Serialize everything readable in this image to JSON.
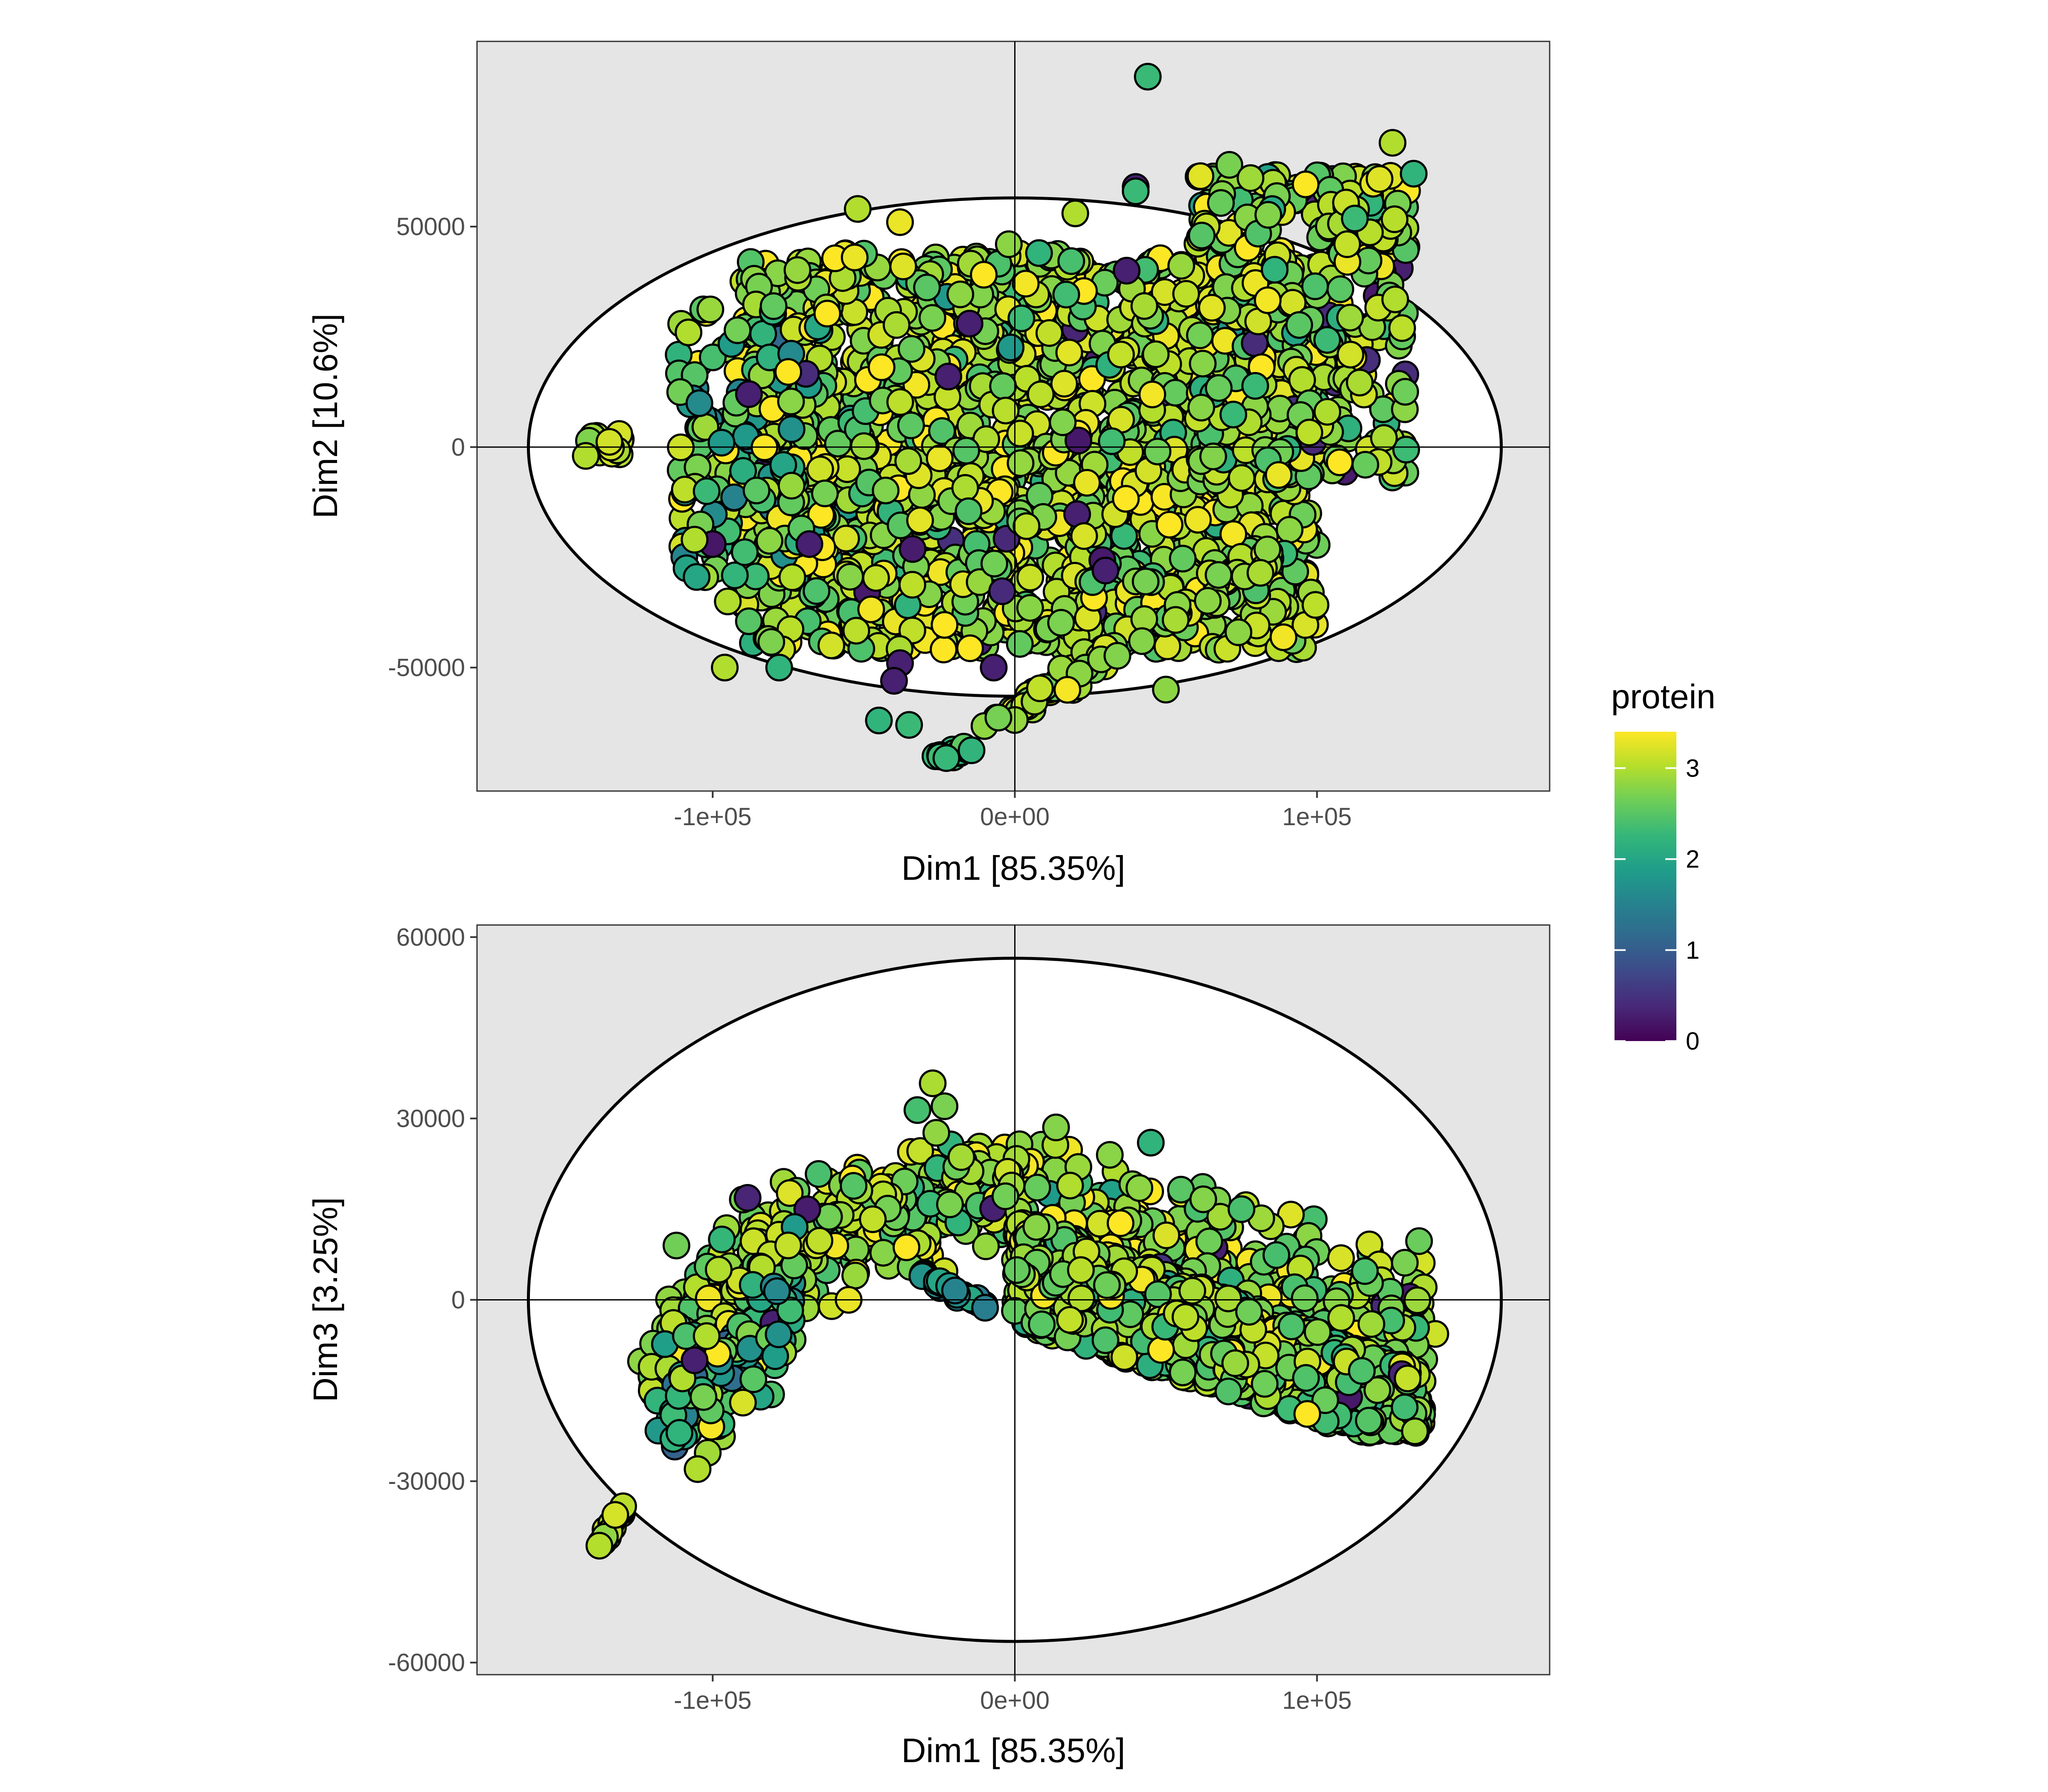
{
  "chart_data": [
    {
      "type": "scatter",
      "id": "top",
      "xlabel": "Dim1 [85.35%]",
      "ylabel": "Dim2 [10.6%]",
      "xlim": [
        -178000,
        177000
      ],
      "ylim": [
        -78000,
        92000
      ],
      "xticks": [
        {
          "value": -100000,
          "label": "-1e+05"
        },
        {
          "value": 0,
          "label": "0e+00"
        },
        {
          "value": 100000,
          "label": "1e+05"
        }
      ],
      "yticks": [
        {
          "value": 50000,
          "label": "50000"
        },
        {
          "value": 0,
          "label": "0"
        },
        {
          "value": -50000,
          "label": "-50000"
        }
      ],
      "ellipse": {
        "cx": 0,
        "cy": 0,
        "rx": 161000,
        "ry": 56500
      },
      "reference_lines": {
        "x": 0,
        "y": 0
      },
      "groups": [
        {
          "desc": "main cloud",
          "n": 1700,
          "type": "box",
          "x": [
            -90000,
            100000
          ],
          "y": [
            -46000,
            44000
          ],
          "protein_mean": 2.9,
          "protein_sd": 0.35
        },
        {
          "desc": "upper right wing",
          "n": 380,
          "type": "box",
          "x": [
            60000,
            130000
          ],
          "y": [
            -8000,
            62000
          ],
          "protein_mean": 2.8,
          "protein_sd": 0.35
        },
        {
          "desc": "lower arc",
          "n": 90,
          "type": "line",
          "from": [
            -10000,
            -64000
          ],
          "to": [
            85000,
            -24000
          ],
          "spread": 2500,
          "protein_mean": 2.9,
          "protein_sd": 0.2
        },
        {
          "desc": "bottom strand",
          "n": 14,
          "type": "line",
          "from": [
            -28000,
            -71000
          ],
          "to": [
            -12000,
            -68000
          ],
          "spread": 1000,
          "protein_mean": 2.3,
          "protein_sd": 0.1
        },
        {
          "desc": "left cluster",
          "n": 14,
          "type": "box",
          "x": [
            -142000,
            -130000
          ],
          "y": [
            -2000,
            3000
          ],
          "protein_mean": 3.0,
          "protein_sd": 0.15
        },
        {
          "desc": "left strands",
          "n": 160,
          "type": "box",
          "x": [
            -112000,
            -62000
          ],
          "y": [
            -30000,
            32000
          ],
          "protein_mean": 2.5,
          "protein_sd": 0.6
        }
      ],
      "highlights": [
        {
          "x": 44000,
          "y": 84000,
          "protein": 2.3
        },
        {
          "x": 125000,
          "y": 69000,
          "protein": 3.0
        },
        {
          "x": 132000,
          "y": 62000,
          "protein": 2.2
        },
        {
          "x": 71000,
          "y": 64000,
          "protein": 2.7
        },
        {
          "x": 78000,
          "y": 61000,
          "protein": 2.9
        },
        {
          "x": -52000,
          "y": 54000,
          "protein": 3.0
        },
        {
          "x": -38000,
          "y": 51000,
          "protein": 3.3
        },
        {
          "x": -53000,
          "y": 43000,
          "protein": 3.3
        },
        {
          "x": 40000,
          "y": 59000,
          "protein": 0.3
        },
        {
          "x": 40000,
          "y": 58000,
          "protein": 2.3
        },
        {
          "x": 20000,
          "y": 53000,
          "protein": 3.0
        },
        {
          "x": -96000,
          "y": -50000,
          "protein": 3.0
        },
        {
          "x": -78000,
          "y": -50000,
          "protein": 2.2
        },
        {
          "x": -35000,
          "y": -63000,
          "protein": 2.3
        },
        {
          "x": -45000,
          "y": -62000,
          "protein": 2.2
        },
        {
          "x": -38000,
          "y": -49000,
          "protein": 0.3
        },
        {
          "x": -40000,
          "y": -53000,
          "protein": 0.3
        },
        {
          "x": -100000,
          "y": -22000,
          "protein": 0.2
        },
        {
          "x": -106000,
          "y": -21000,
          "protein": 3.0
        },
        {
          "x": -102000,
          "y": -10000,
          "protein": 2.3
        },
        {
          "x": -108000,
          "y": 26000,
          "protein": 3.0
        },
        {
          "x": -95000,
          "y": -35000,
          "protein": 3.0
        },
        {
          "x": 37000,
          "y": 40000,
          "protein": 0.3
        },
        {
          "x": -15000,
          "y": 28000,
          "protein": 0.3
        },
        {
          "x": -68000,
          "y": -22000,
          "protein": 0.3
        },
        {
          "x": -22000,
          "y": 16000,
          "protein": 0.3
        },
        {
          "x": 30000,
          "y": -28000,
          "protein": 0.3
        },
        {
          "x": -7000,
          "y": -50000,
          "protein": 0.3
        },
        {
          "x": -88000,
          "y": 12000,
          "protein": 0.3
        },
        {
          "x": 50000,
          "y": -55000,
          "protein": 2.8
        },
        {
          "x": 110000,
          "y": 46000,
          "protein": 3.1
        },
        {
          "x": 8000,
          "y": 44000,
          "protein": 2.2
        },
        {
          "x": -2000,
          "y": 46000,
          "protein": 2.8
        },
        {
          "x": 116000,
          "y": -4000,
          "protein": 2.6
        },
        {
          "x": 74000,
          "y": -42000,
          "protein": 2.8
        },
        {
          "x": -142000,
          "y": -2000,
          "protein": 3.0
        }
      ]
    },
    {
      "type": "scatter",
      "id": "bottom",
      "xlabel": "Dim1 [85.35%]",
      "ylabel": "Dim3 [3.25%]",
      "xlim": [
        -178000,
        177000
      ],
      "ylim": [
        -62000,
        62000
      ],
      "xticks": [
        {
          "value": -100000,
          "label": "-1e+05"
        },
        {
          "value": 0,
          "label": "0e+00"
        },
        {
          "value": 100000,
          "label": "1e+05"
        }
      ],
      "yticks": [
        {
          "value": 60000,
          "label": "60000"
        },
        {
          "value": 30000,
          "label": "30000"
        },
        {
          "value": 0,
          "label": "0"
        },
        {
          "value": -30000,
          "label": "-30000"
        },
        {
          "value": -60000,
          "label": "-60000"
        }
      ],
      "ellipse": {
        "cx": 0,
        "cy": 0,
        "rx": 161000,
        "ry": 56500
      },
      "reference_lines": {
        "x": 0,
        "y": 0
      },
      "groups": [
        {
          "desc": "upper arch",
          "n": 700,
          "type": "curve",
          "pts": [
            [
              -118000,
              -14000
            ],
            [
              -100000,
              2000
            ],
            [
              -75000,
              9000
            ],
            [
              -50000,
              14000
            ],
            [
              -25000,
              18000
            ],
            [
              0,
              18000
            ],
            [
              25000,
              15000
            ],
            [
              50000,
              10000
            ],
            [
              80000,
              4000
            ],
            [
              115000,
              -2000
            ],
            [
              135000,
              -6000
            ]
          ],
          "spread": 5000,
          "protein_mean": 2.85,
          "protein_sd": 0.35
        },
        {
          "desc": "lower right band",
          "n": 1200,
          "type": "box",
          "x": [
            0,
            135000
          ],
          "y": [
            -22000,
            14000
          ],
          "lower_edge": "sloped",
          "protein_mean": 2.75,
          "protein_sd": 0.35
        },
        {
          "desc": "inner arch strand",
          "n": 30,
          "type": "line",
          "from": [
            -30000,
            4000
          ],
          "to": [
            -10000,
            -1000
          ],
          "spread": 800,
          "protein_mean": 1.6,
          "protein_sd": 0.3
        },
        {
          "desc": "lower left arm",
          "n": 150,
          "type": "curve",
          "pts": [
            [
              -113000,
              -20000
            ],
            [
              -100000,
              -12000
            ],
            [
              -85000,
              -6000
            ],
            [
              -75000,
              -1000
            ]
          ],
          "spread": 4500,
          "protein_mean": 2.3,
          "protein_sd": 0.7
        },
        {
          "desc": "far left tail",
          "n": 16,
          "type": "line",
          "from": [
            -137000,
            -40500
          ],
          "to": [
            -128000,
            -33000
          ],
          "spread": 700,
          "protein_mean": 3.0,
          "protein_sd": 0.1
        }
      ],
      "highlights": [
        {
          "x": 45000,
          "y": 26000,
          "protein": 2.2
        },
        {
          "x": -105000,
          "y": -28000,
          "protein": 3.0
        },
        {
          "x": -113000,
          "y": -23000,
          "protein": 2.2
        },
        {
          "x": -111000,
          "y": -22000,
          "protein": 2.2
        },
        {
          "x": -110000,
          "y": -13000,
          "protein": 3.0
        },
        {
          "x": -106000,
          "y": -10000,
          "protein": 0.3
        },
        {
          "x": -102000,
          "y": -6000,
          "protein": 3.0
        },
        {
          "x": -98000,
          "y": 5000,
          "protein": 3.0
        },
        {
          "x": -90000,
          "y": -17000,
          "protein": 3.2
        },
        {
          "x": -55000,
          "y": 0,
          "protein": 3.3
        },
        {
          "x": -75000,
          "y": 9000,
          "protein": 3.1
        },
        {
          "x": 75000,
          "y": 15000,
          "protein": 2.4
        },
        {
          "x": 108000,
          "y": -3000,
          "protein": 3.0
        },
        {
          "x": 118000,
          "y": -4000,
          "protein": 2.9
        },
        {
          "x": 130000,
          "y": -13000,
          "protein": 3.1
        }
      ]
    }
  ],
  "legend": {
    "title": "protein",
    "min": 0,
    "max": 3.4,
    "ticks": [
      {
        "value": 0,
        "label": "0"
      },
      {
        "value": 1,
        "label": "1"
      },
      {
        "value": 2,
        "label": "2"
      },
      {
        "value": 3,
        "label": "3"
      }
    ],
    "colormap": [
      "#440154",
      "#482878",
      "#3e4989",
      "#31688e",
      "#26828e",
      "#1f9e89",
      "#35b779",
      "#6ece58",
      "#b5de2b",
      "#fde725"
    ]
  }
}
